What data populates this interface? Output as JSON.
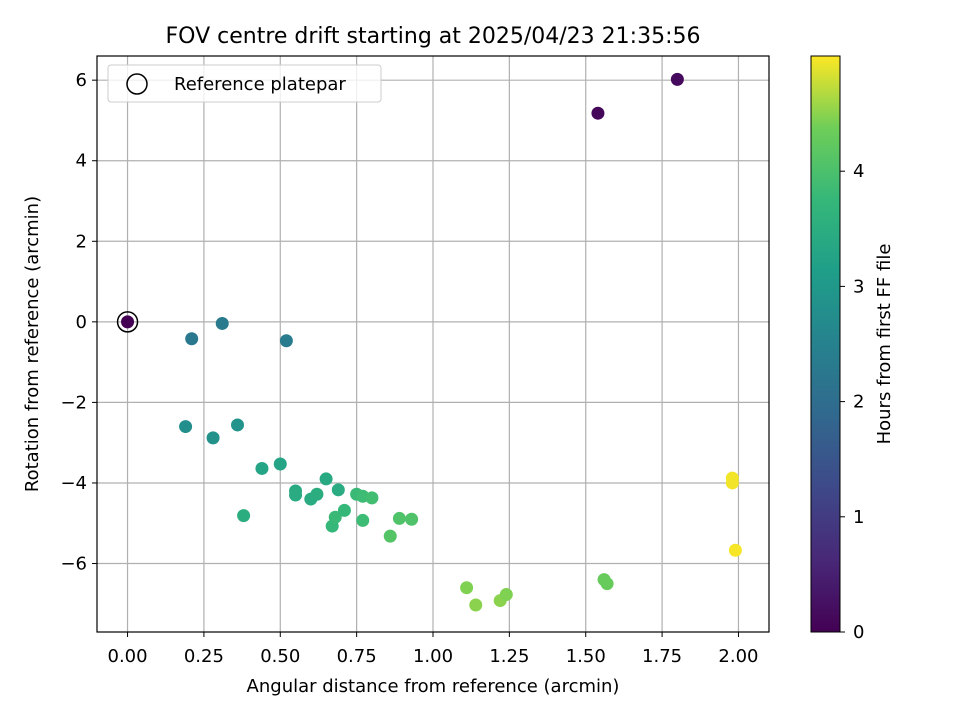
{
  "chart_data": {
    "type": "scatter",
    "title": "FOV centre drift starting at 2025/04/23 21:35:56",
    "xlabel": "Angular distance from reference (arcmin)",
    "ylabel": "Rotation from reference (arcmin)",
    "xlim": [
      -0.1,
      2.1
    ],
    "ylim": [
      -7.7,
      6.6
    ],
    "xticks": [
      0.0,
      0.25,
      0.5,
      0.75,
      1.0,
      1.25,
      1.5,
      1.75,
      2.0
    ],
    "xtick_labels": [
      "0.00",
      "0.25",
      "0.50",
      "0.75",
      "1.00",
      "1.25",
      "1.50",
      "1.75",
      "2.00"
    ],
    "yticks": [
      -6,
      -4,
      -2,
      0,
      2,
      4,
      6
    ],
    "ytick_labels": [
      "−6",
      "−4",
      "−2",
      "0",
      "2",
      "4",
      "6"
    ],
    "grid": true,
    "legend": {
      "placement": "top-left",
      "entries": [
        "Reference platepar"
      ]
    },
    "colorbar": {
      "label": "Hours from first FF file",
      "range": [
        0,
        5.0
      ],
      "ticks": [
        0,
        1,
        2,
        3,
        4
      ],
      "tick_labels": [
        "0",
        "1",
        "2",
        "3",
        "4"
      ],
      "colormap": "viridis"
    },
    "reference_point": {
      "x": 0.0,
      "y": 0.0
    },
    "points": [
      {
        "x": 0.0,
        "y": 0.0,
        "hours": 0.0
      },
      {
        "x": 1.54,
        "y": 5.18,
        "hours": 0.1
      },
      {
        "x": 1.8,
        "y": 6.02,
        "hours": 0.15
      },
      {
        "x": 0.21,
        "y": -0.42,
        "hours": 2.25
      },
      {
        "x": 0.31,
        "y": -0.04,
        "hours": 2.3
      },
      {
        "x": 0.52,
        "y": -0.47,
        "hours": 2.35
      },
      {
        "x": 0.19,
        "y": -2.6,
        "hours": 2.8
      },
      {
        "x": 0.28,
        "y": -2.88,
        "hours": 2.85
      },
      {
        "x": 0.36,
        "y": -2.56,
        "hours": 2.9
      },
      {
        "x": 0.44,
        "y": -3.64,
        "hours": 3.3
      },
      {
        "x": 0.5,
        "y": -3.53,
        "hours": 3.3
      },
      {
        "x": 0.38,
        "y": -4.81,
        "hours": 3.5
      },
      {
        "x": 0.55,
        "y": -4.2,
        "hours": 3.4
      },
      {
        "x": 0.55,
        "y": -4.3,
        "hours": 3.45
      },
      {
        "x": 0.6,
        "y": -4.4,
        "hours": 3.45
      },
      {
        "x": 0.62,
        "y": -4.28,
        "hours": 3.5
      },
      {
        "x": 0.65,
        "y": -3.9,
        "hours": 3.4
      },
      {
        "x": 0.69,
        "y": -4.17,
        "hours": 3.45
      },
      {
        "x": 0.67,
        "y": -5.07,
        "hours": 3.75
      },
      {
        "x": 0.68,
        "y": -4.85,
        "hours": 3.8
      },
      {
        "x": 0.71,
        "y": -4.68,
        "hours": 3.75
      },
      {
        "x": 0.75,
        "y": -4.28,
        "hours": 3.8
      },
      {
        "x": 0.77,
        "y": -4.33,
        "hours": 3.85
      },
      {
        "x": 0.77,
        "y": -4.93,
        "hours": 3.85
      },
      {
        "x": 0.8,
        "y": -4.37,
        "hours": 3.9
      },
      {
        "x": 0.86,
        "y": -5.32,
        "hours": 4.1
      },
      {
        "x": 0.89,
        "y": -4.88,
        "hours": 4.05
      },
      {
        "x": 0.93,
        "y": -4.9,
        "hours": 4.05
      },
      {
        "x": 1.11,
        "y": -6.6,
        "hours": 4.45
      },
      {
        "x": 1.14,
        "y": -7.03,
        "hours": 4.5
      },
      {
        "x": 1.22,
        "y": -6.92,
        "hours": 4.5
      },
      {
        "x": 1.24,
        "y": -6.77,
        "hours": 4.45
      },
      {
        "x": 1.56,
        "y": -6.4,
        "hours": 4.3
      },
      {
        "x": 1.57,
        "y": -6.5,
        "hours": 4.3
      },
      {
        "x": 1.98,
        "y": -3.88,
        "hours": 4.95
      },
      {
        "x": 1.98,
        "y": -4.0,
        "hours": 4.95
      },
      {
        "x": 1.99,
        "y": -5.67,
        "hours": 4.97
      }
    ]
  }
}
